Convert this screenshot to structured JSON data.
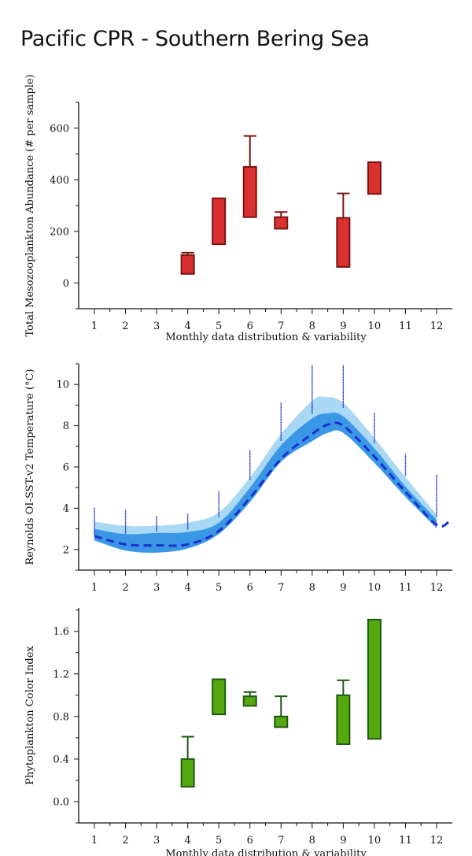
{
  "page": {
    "title": "Pacific CPR - Southern Bering Sea"
  },
  "chart_data": [
    {
      "type": "box",
      "ylabel": "Total Mesozooplankton Abundance (# per sample)",
      "xlabel": "Monthly data distribution & variability",
      "x_ticks": [
        1,
        2,
        3,
        4,
        5,
        6,
        7,
        8,
        9,
        10,
        11,
        12
      ],
      "y_ticks": [
        0,
        200,
        400,
        600
      ],
      "ylim": [
        -100,
        700
      ],
      "xlim": [
        0.5,
        12.5
      ],
      "color": "#d93030",
      "edge_color": "#7a1212",
      "boxes": [
        {
          "month": 4,
          "low": 35,
          "high": 108,
          "whisker_high": 117
        },
        {
          "month": 5,
          "low": 150,
          "high": 328
        },
        {
          "month": 6,
          "low": 255,
          "high": 450,
          "whisker_high": 570
        },
        {
          "month": 7,
          "low": 210,
          "high": 255,
          "whisker_high": 275
        },
        {
          "month": 9,
          "low": 62,
          "high": 252,
          "whisker_high": 347
        },
        {
          "month": 10,
          "low": 345,
          "high": 468
        }
      ]
    },
    {
      "type": "line",
      "ylabel": "Reynolds OI-SST-v2 Temperature (°C)",
      "x_ticks": [
        1,
        2,
        3,
        4,
        5,
        6,
        7,
        8,
        9,
        10,
        11,
        12
      ],
      "y_ticks": [
        2,
        4,
        6,
        8,
        10
      ],
      "ylim": [
        1,
        11
      ],
      "xlim": [
        0.5,
        12.5
      ],
      "series": [
        {
          "style": "dashed",
          "color": "#1a2fcc",
          "x": [
            1,
            2,
            3,
            4,
            5,
            6,
            7,
            8,
            8.5,
            9,
            10,
            11,
            12,
            12.4
          ],
          "y": [
            2.65,
            2.25,
            2.2,
            2.25,
            2.9,
            4.5,
            6.4,
            7.6,
            8.05,
            8.0,
            6.5,
            4.8,
            3.2,
            3.35
          ]
        }
      ],
      "bands": [
        {
          "color": "#a9d8f5",
          "x": [
            1,
            2,
            3,
            4,
            5,
            6,
            7,
            8,
            8.4,
            9,
            10,
            11,
            12
          ],
          "lower": [
            2.4,
            2.15,
            2.1,
            2.2,
            2.8,
            4.4,
            6.3,
            7.4,
            7.8,
            7.7,
            6.2,
            4.6,
            3.0
          ],
          "upper": [
            3.35,
            3.15,
            3.15,
            3.3,
            3.8,
            5.5,
            7.6,
            9.2,
            9.4,
            9.1,
            7.4,
            5.5,
            3.7
          ]
        },
        {
          "color": "#3a97e6",
          "x": [
            1,
            2,
            3,
            4,
            5,
            6,
            7,
            8,
            8.5,
            9,
            10,
            11,
            12
          ],
          "lower": [
            2.45,
            1.95,
            1.85,
            2.05,
            2.75,
            4.3,
            6.25,
            7.25,
            7.65,
            7.65,
            6.2,
            4.55,
            3.05
          ],
          "upper": [
            3.0,
            2.75,
            2.8,
            2.85,
            3.3,
            5.0,
            7.05,
            8.35,
            8.6,
            8.45,
            6.9,
            5.05,
            3.45
          ]
        }
      ],
      "points": [
        {
          "x": 1,
          "ymin": 2.7,
          "ymax": 4.0
        },
        {
          "x": 2,
          "ymin": 2.8,
          "ymax": 3.9
        },
        {
          "x": 3,
          "ymin": 2.9,
          "ymax": 3.6
        },
        {
          "x": 4,
          "ymin": 3.0,
          "ymax": 3.7
        },
        {
          "x": 5,
          "ymin": 3.6,
          "ymax": 4.8
        },
        {
          "x": 6,
          "ymin": 5.4,
          "ymax": 6.8
        },
        {
          "x": 7,
          "ymin": 7.3,
          "ymax": 9.1
        },
        {
          "x": 8,
          "ymin": 8.6,
          "ymax": 10.9
        },
        {
          "x": 9,
          "ymin": 8.9,
          "ymax": 10.9
        },
        {
          "x": 10,
          "ymin": 7.2,
          "ymax": 8.6
        },
        {
          "x": 11,
          "ymin": 5.6,
          "ymax": 6.6
        },
        {
          "x": 12,
          "ymin": 3.6,
          "ymax": 5.6
        }
      ]
    },
    {
      "type": "box",
      "ylabel": "Phytoplankton Color Index",
      "xlabel": "Monthly data distribution & variability",
      "x_ticks": [
        1,
        2,
        3,
        4,
        5,
        6,
        7,
        8,
        9,
        10,
        11,
        12
      ],
      "y_ticks": [
        "0.0",
        "0.4",
        "0.8",
        "1.2",
        "1.6"
      ],
      "ylim": [
        -0.2,
        1.82
      ],
      "xlim": [
        0.5,
        12.5
      ],
      "color": "#55a80e",
      "edge_color": "#1e5a14",
      "boxes": [
        {
          "month": 4,
          "low": 0.14,
          "high": 0.4,
          "whisker_high": 0.61
        },
        {
          "month": 5,
          "low": 0.82,
          "high": 1.15
        },
        {
          "month": 6,
          "low": 0.9,
          "high": 0.99,
          "whisker_high": 1.03
        },
        {
          "month": 7,
          "low": 0.7,
          "high": 0.8,
          "whisker_high": 0.99
        },
        {
          "month": 9,
          "low": 0.54,
          "high": 1.0,
          "whisker_high": 1.14
        },
        {
          "month": 10,
          "low": 0.59,
          "high": 1.71
        }
      ]
    }
  ]
}
